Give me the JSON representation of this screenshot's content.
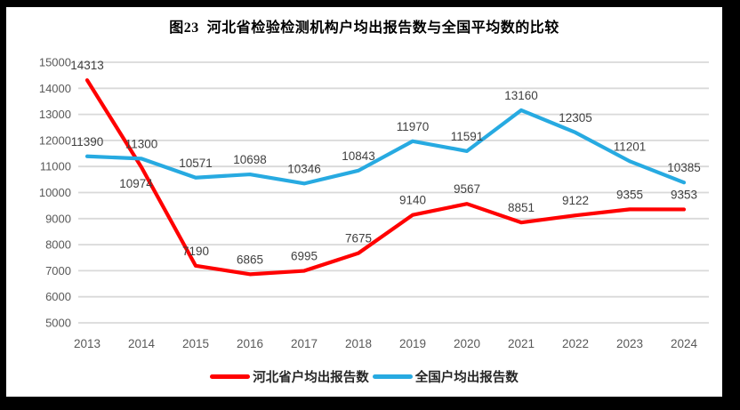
{
  "title": "图23  河北省检验检测机构户均出报告数与全国平均数的比较",
  "chart_data": {
    "type": "line",
    "categories": [
      "2013",
      "2014",
      "2015",
      "2016",
      "2017",
      "2018",
      "2019",
      "2020",
      "2021",
      "2022",
      "2023",
      "2024"
    ],
    "series": [
      {
        "name": "河北省户均出报告数",
        "color": "#ff0000",
        "values": [
          14313,
          10974,
          7190,
          6865,
          6995,
          7675,
          9140,
          9567,
          8851,
          9122,
          9355,
          9353
        ]
      },
      {
        "name": "全国户均出报告数",
        "color": "#27aae1",
        "values": [
          11390,
          11300,
          10571,
          10698,
          10346,
          10843,
          11970,
          11591,
          13160,
          12305,
          11201,
          10385
        ]
      }
    ],
    "ylim": [
      5000,
      15000
    ],
    "ytick_step": 1000,
    "ytick_labels": [
      "15000",
      "14000",
      "13000",
      "12000",
      "11000",
      "10000",
      "9000",
      "8000",
      "7000",
      "6000",
      "5000"
    ],
    "xlabel": "",
    "ylabel": "",
    "grid": "horizontal",
    "legend_position": "bottom",
    "data_labels": true
  },
  "colors": {
    "frame": "#000000",
    "background": "#ffffff",
    "gridline": "#d9d9d9",
    "axis_text": "#595959",
    "data_label_text": "#404040"
  }
}
